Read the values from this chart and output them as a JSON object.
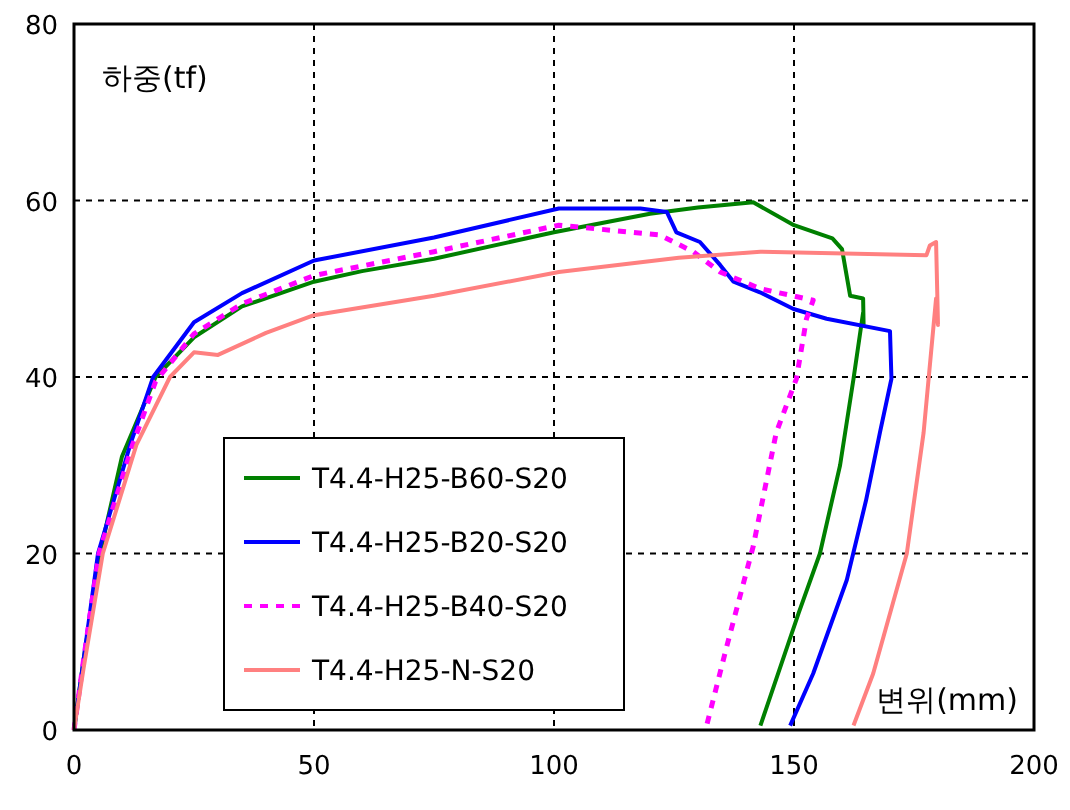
{
  "chart_data": {
    "type": "line",
    "xlabel": "변위(mm)",
    "ylabel": "하중(tf)",
    "xlim": [
      0,
      200
    ],
    "ylim": [
      0,
      80
    ],
    "xticks": [
      0,
      50,
      100,
      150,
      200
    ],
    "yticks": [
      0,
      20,
      40,
      60,
      80
    ],
    "grid": true,
    "legend": "bottom left",
    "series": [
      {
        "name": "T4.4-H25-B60-S20",
        "color": "#008000",
        "line_style": "solid",
        "x": [
          0,
          2,
          5.4,
          10,
          17,
          25,
          35,
          50,
          60,
          75,
          100,
          120,
          130,
          141.5,
          150,
          158,
          160,
          161.7,
          164.4,
          164.5,
          164.4,
          162.4,
          159.6,
          155.4,
          151,
          143
        ],
        "values": [
          0,
          8,
          20,
          31,
          40,
          44.5,
          48,
          50.8,
          52,
          53.4,
          56.4,
          58.5,
          59.2,
          59.8,
          57.2,
          55.7,
          54.5,
          49.2,
          48.9,
          45.9,
          47.3,
          39.8,
          30,
          20,
          13.3,
          0.5
        ]
      },
      {
        "name": "T4.4-H25-B20-S20",
        "color": "#0000ff",
        "line_style": "solid",
        "x": [
          0,
          2,
          5,
          11.7,
          16.5,
          25,
          35,
          50,
          75,
          101,
          118,
          123.5,
          125.5,
          130.4,
          134.6,
          137.4,
          142.9,
          149.9,
          156.8,
          170,
          170.3,
          167.9,
          165,
          161,
          154,
          149.2
        ],
        "values": [
          0,
          8,
          20,
          32.3,
          40,
          46.2,
          49.5,
          53.2,
          55.8,
          59.1,
          59.1,
          58.7,
          56.4,
          55.3,
          52.7,
          50.8,
          49.6,
          47.7,
          46.6,
          45.2,
          39.8,
          33.7,
          26,
          17,
          6.4,
          0.5
        ]
      },
      {
        "name": "T4.4-H25-B40-S20",
        "color": "#ff00ff",
        "line_style": "dotted",
        "x": [
          0,
          2,
          5.2,
          12,
          17,
          25,
          35,
          50,
          75,
          101,
          122,
          129,
          134.6,
          143,
          154,
          152.6,
          150.5,
          146.3,
          141.5,
          136,
          131.8
        ],
        "values": [
          0,
          8,
          20,
          32,
          39.5,
          44.9,
          48.3,
          51.5,
          54.2,
          57.2,
          56.1,
          54.2,
          51.9,
          50,
          48.7,
          46.6,
          39.8,
          33.7,
          20.8,
          9.5,
          0.5
        ]
      },
      {
        "name": "T4.4-H25-N-S20",
        "color": "#ff8080",
        "line_style": "solid",
        "x": [
          0,
          2,
          6,
          13,
          20,
          25,
          30,
          40,
          50,
          75,
          101,
          126,
          143,
          177.6,
          178.3,
          179.6,
          180,
          179.6,
          177,
          173.5,
          166.5,
          162.4
        ],
        "values": [
          0,
          7,
          20,
          32.3,
          40,
          42.8,
          42.5,
          45,
          47,
          49.2,
          51.9,
          53.5,
          54.2,
          53.8,
          54.9,
          55.3,
          45.9,
          48.9,
          33.7,
          20,
          6.4,
          0.5
        ]
      }
    ]
  }
}
